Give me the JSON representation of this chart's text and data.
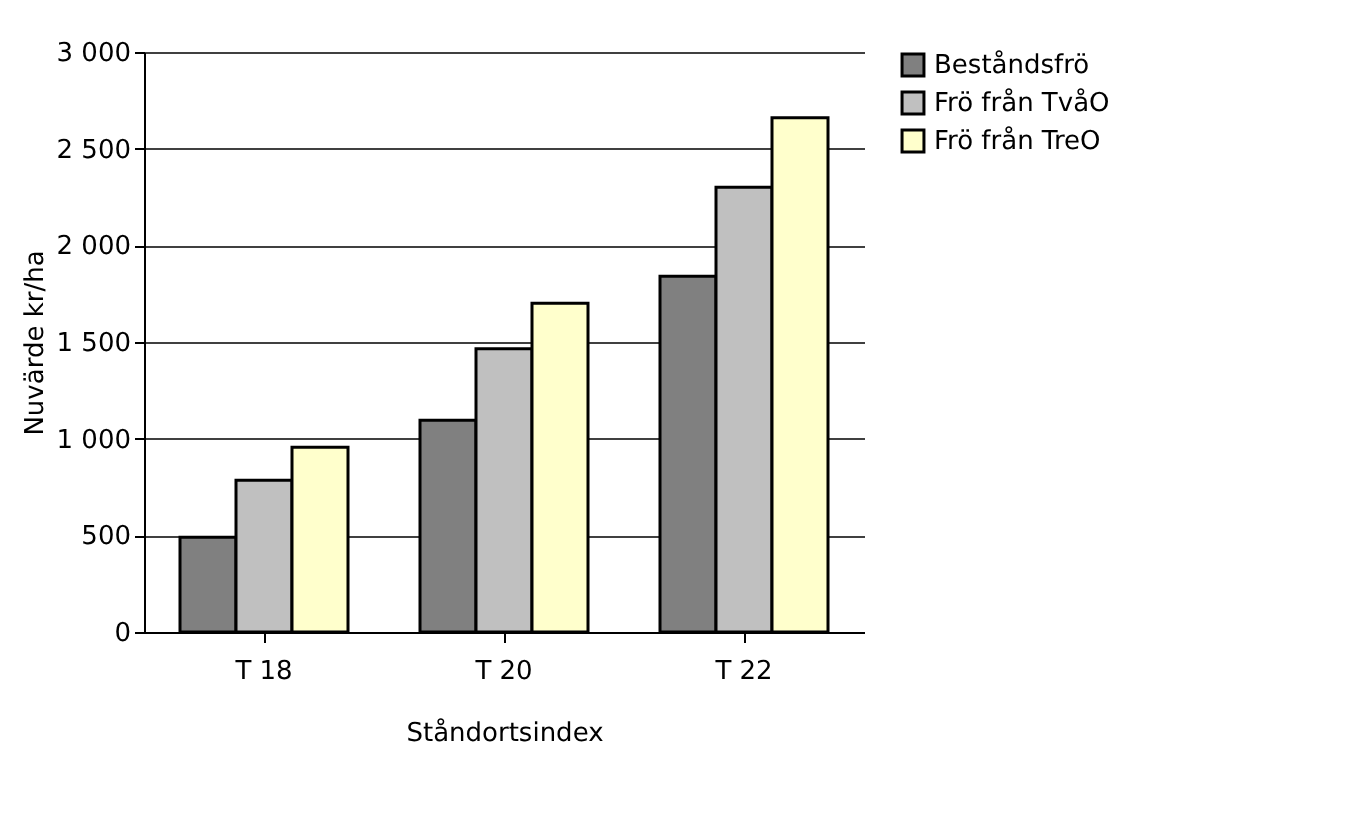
{
  "chart_data": {
    "type": "bar",
    "xlabel": "Ståndortsindex",
    "ylabel": "Nuvärde kr/ha",
    "categories": [
      "T 18",
      "T 20",
      "T 22"
    ],
    "series": [
      {
        "name": "Beståndsfrö",
        "color": "#808080",
        "values": [
          490,
          1095,
          1840
        ]
      },
      {
        "name": "Frö från TvåO",
        "color": "#c0c0c0",
        "values": [
          785,
          1465,
          2300
        ]
      },
      {
        "name": "Frö från TreO",
        "color": "#ffffcc",
        "values": [
          955,
          1700,
          2660
        ]
      }
    ],
    "ylim": [
      0,
      3000
    ],
    "yticks": [
      {
        "value": 0,
        "label": "0"
      },
      {
        "value": 500,
        "label": "500"
      },
      {
        "value": 1000,
        "label": "1 000"
      },
      {
        "value": 1500,
        "label": "1 500"
      },
      {
        "value": 2000,
        "label": "2 000"
      },
      {
        "value": 2500,
        "label": "2 500"
      },
      {
        "value": 3000,
        "label": "3 000"
      }
    ],
    "grid": "y",
    "legend": "right"
  }
}
